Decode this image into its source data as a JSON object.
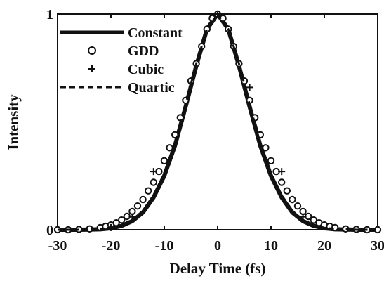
{
  "chart_data": {
    "type": "line",
    "xlabel": "Delay Time (fs)",
    "ylabel": "Intensity",
    "xlim": [
      -30,
      30
    ],
    "ylim": [
      0,
      1
    ],
    "x_ticks": [
      -30,
      -20,
      -10,
      0,
      10,
      20,
      30
    ],
    "y_ticks": [
      0,
      1
    ],
    "legend_position": "top-left",
    "grid": false,
    "colors": {
      "ink": "#111111",
      "background": "#ffffff"
    },
    "series": [
      {
        "name": "Constant",
        "style": "solid-line",
        "x": [
          -30,
          -26,
          -22,
          -20,
          -18,
          -16,
          -14,
          -12,
          -10,
          -8,
          -6,
          -4,
          -2,
          0,
          2,
          4,
          6,
          8,
          10,
          12,
          14,
          16,
          18,
          20,
          22,
          26,
          30
        ],
        "y": [
          0,
          0,
          0.002,
          0.007,
          0.018,
          0.04,
          0.08,
          0.15,
          0.25,
          0.39,
          0.57,
          0.76,
          0.93,
          1,
          0.93,
          0.76,
          0.57,
          0.39,
          0.25,
          0.15,
          0.08,
          0.04,
          0.018,
          0.007,
          0.002,
          0,
          0
        ]
      },
      {
        "name": "GDD",
        "style": "open-circle",
        "x": [
          -30,
          -28,
          -26,
          -24,
          -22,
          -21,
          -20,
          -19,
          -18,
          -17,
          -16,
          -15,
          -14,
          -13,
          -12,
          -11,
          -10,
          -9,
          -8,
          -7,
          -6,
          -5,
          -4,
          -3,
          -2,
          -1,
          0,
          1,
          2,
          3,
          4,
          5,
          6,
          7,
          8,
          9,
          10,
          11,
          12,
          13,
          14,
          15,
          16,
          17,
          18,
          19,
          20,
          21,
          22,
          24,
          26,
          28,
          30
        ],
        "y": [
          0,
          0,
          0.002,
          0.004,
          0.01,
          0.016,
          0.022,
          0.032,
          0.045,
          0.062,
          0.085,
          0.11,
          0.14,
          0.18,
          0.22,
          0.27,
          0.32,
          0.38,
          0.44,
          0.52,
          0.6,
          0.69,
          0.77,
          0.85,
          0.93,
          0.98,
          1,
          0.98,
          0.93,
          0.85,
          0.77,
          0.69,
          0.6,
          0.52,
          0.44,
          0.38,
          0.32,
          0.27,
          0.22,
          0.18,
          0.14,
          0.11,
          0.085,
          0.062,
          0.045,
          0.032,
          0.022,
          0.016,
          0.01,
          0.004,
          0.002,
          0,
          0
        ]
      },
      {
        "name": "Cubic",
        "style": "plus",
        "x": [
          -20,
          -16,
          -12,
          0,
          6,
          12,
          16
        ],
        "y": [
          0.01,
          0.06,
          0.27,
          1,
          0.66,
          0.27,
          0.06
        ]
      },
      {
        "name": "Quartic",
        "style": "dashed-line",
        "x": [
          -30,
          -26,
          -22,
          -20,
          -18,
          -16,
          -14,
          -12,
          -10,
          -8,
          -6,
          -4,
          -2,
          0,
          2,
          4,
          6,
          8,
          10,
          12,
          14,
          16,
          18,
          20,
          22,
          26,
          30
        ],
        "y": [
          0,
          0,
          0.003,
          0.009,
          0.022,
          0.045,
          0.088,
          0.16,
          0.26,
          0.4,
          0.58,
          0.77,
          0.93,
          1,
          0.93,
          0.77,
          0.58,
          0.4,
          0.26,
          0.16,
          0.088,
          0.045,
          0.022,
          0.009,
          0.003,
          0,
          0
        ]
      }
    ]
  }
}
